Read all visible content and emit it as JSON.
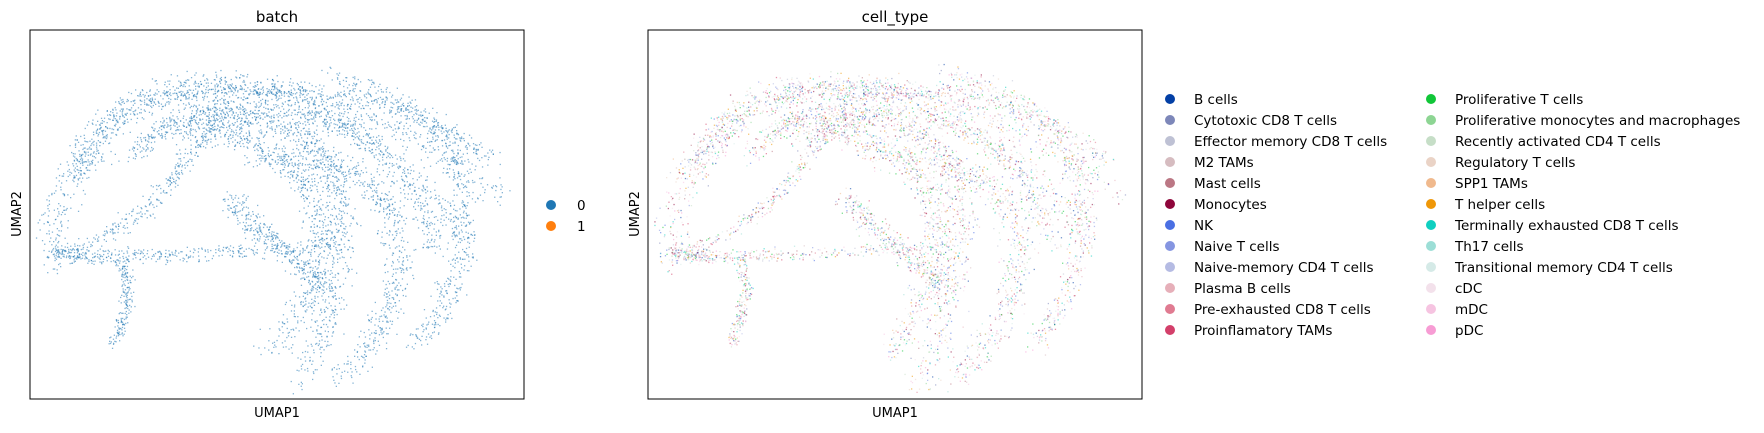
{
  "chart_data": [
    {
      "type": "scatter",
      "title": "batch",
      "xlabel": "UMAP1",
      "ylabel": "UMAP2",
      "grid": false,
      "ticks": "none",
      "legend_position": "right",
      "legend": [
        {
          "label": "0",
          "color": "#1f77b4"
        },
        {
          "label": "1",
          "color": "#ff7f0e"
        }
      ],
      "point_color": "#1f77b4"
    },
    {
      "type": "scatter",
      "title": "cell_type",
      "xlabel": "UMAP1",
      "ylabel": "UMAP2",
      "grid": false,
      "ticks": "none",
      "legend_position": "right",
      "legend": [
        {
          "label": "B cells",
          "color": "#023fa5"
        },
        {
          "label": "Cytotoxic CD8 T cells",
          "color": "#7d87b9"
        },
        {
          "label": "Effector memory CD8 T cells",
          "color": "#bec1d4"
        },
        {
          "label": "M2 TAMs",
          "color": "#d6bcc0"
        },
        {
          "label": "Mast cells",
          "color": "#bb7784"
        },
        {
          "label": "Monocytes",
          "color": "#8e063b"
        },
        {
          "label": "NK",
          "color": "#4a6fe3"
        },
        {
          "label": "Naive T cells",
          "color": "#8595e1"
        },
        {
          "label": "Naive-memory CD4 T cells",
          "color": "#b5bbe3"
        },
        {
          "label": "Plasma B cells",
          "color": "#e6afb9"
        },
        {
          "label": "Pre-exhausted CD8 T cells",
          "color": "#e07b91"
        },
        {
          "label": "Proinflamatory TAMs",
          "color": "#d33f6a"
        },
        {
          "label": "Proliferative T cells",
          "color": "#11c638"
        },
        {
          "label": "Proliferative monocytes and macrophages",
          "color": "#8dd593"
        },
        {
          "label": "Recently activated CD4 T cells",
          "color": "#c6dec7"
        },
        {
          "label": "Regulatory T cells",
          "color": "#ead3c6"
        },
        {
          "label": "SPP1 TAMs",
          "color": "#f0b98d"
        },
        {
          "label": "T helper cells",
          "color": "#ef9708"
        },
        {
          "label": "Terminally exhausted CD8 T cells",
          "color": "#0fcfc0"
        },
        {
          "label": "Th17 cells",
          "color": "#9cded6"
        },
        {
          "label": "Transitional memory CD4 T cells",
          "color": "#d5eae7"
        },
        {
          "label": "cDC",
          "color": "#f3e1eb"
        },
        {
          "label": "mDC",
          "color": "#f6c4e1"
        },
        {
          "label": "pDC",
          "color": "#f79cd4"
        }
      ]
    }
  ]
}
